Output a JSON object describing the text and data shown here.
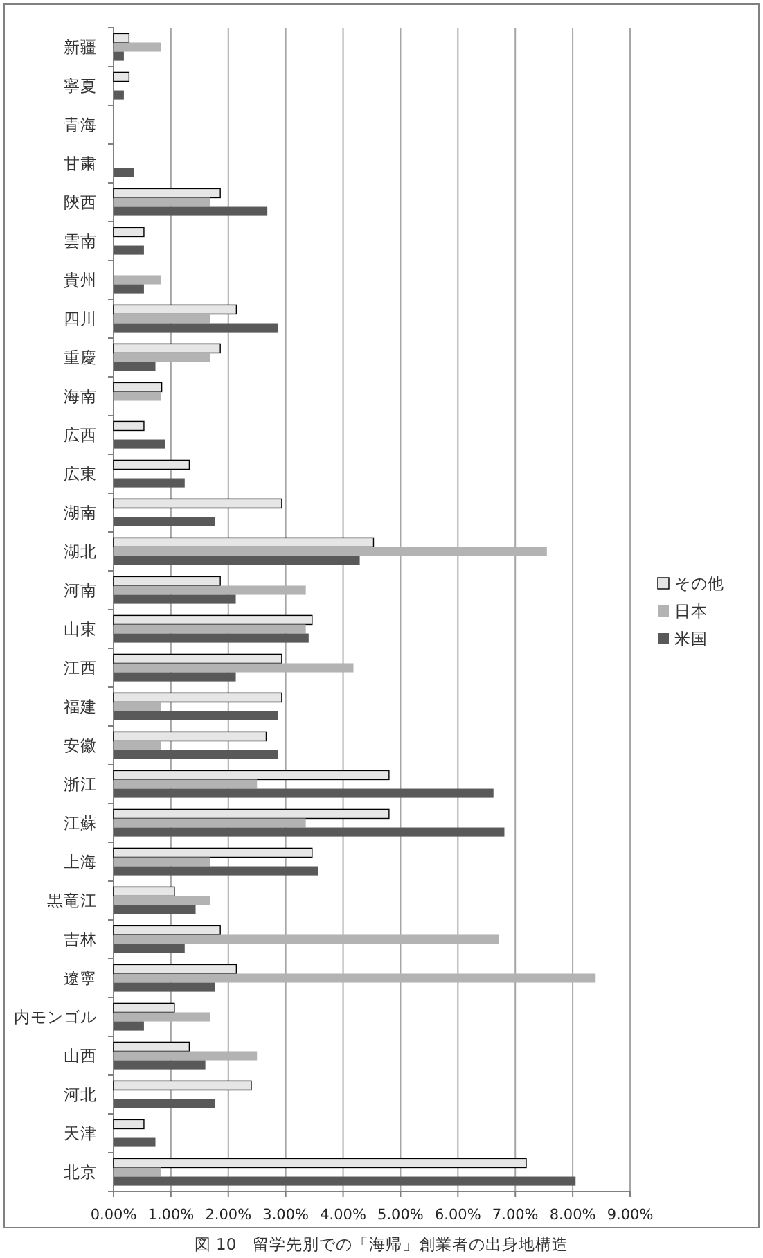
{
  "chart_data": {
    "type": "bar",
    "orientation": "horizontal",
    "categories": [
      "新疆",
      "寧夏",
      "青海",
      "甘粛",
      "陝西",
      "雲南",
      "貴州",
      "四川",
      "重慶",
      "海南",
      "広西",
      "広東",
      "湖南",
      "湖北",
      "河南",
      "山東",
      "江西",
      "福建",
      "安徽",
      "浙江",
      "江蘇",
      "上海",
      "黒竜江",
      "吉林",
      "遼寧",
      "内モンゴル",
      "山西",
      "河北",
      "天津",
      "北京"
    ],
    "series": [
      {
        "name": "その他",
        "color": "#e6e6e6",
        "values": [
          0.27,
          0.27,
          null,
          null,
          1.86,
          0.53,
          null,
          2.14,
          1.86,
          0.84,
          0.53,
          1.32,
          2.93,
          4.53,
          1.86,
          3.46,
          2.93,
          2.93,
          2.66,
          4.8,
          4.8,
          3.46,
          1.06,
          1.86,
          2.14,
          1.06,
          1.32,
          2.4,
          0.53,
          7.19
        ]
      },
      {
        "name": "日本",
        "color": "#b3b3b3",
        "values": [
          0.83,
          null,
          null,
          null,
          1.68,
          null,
          0.83,
          1.68,
          1.68,
          0.83,
          null,
          null,
          null,
          7.55,
          3.35,
          3.35,
          4.18,
          0.83,
          0.83,
          2.5,
          3.35,
          1.68,
          1.68,
          6.71,
          8.4,
          1.68,
          2.5,
          null,
          null,
          0.83
        ]
      },
      {
        "name": "米国",
        "color": "#595959",
        "values": [
          0.18,
          0.18,
          null,
          0.35,
          2.68,
          0.53,
          0.53,
          2.86,
          0.73,
          null,
          0.9,
          1.24,
          1.77,
          4.29,
          2.13,
          3.4,
          2.13,
          2.86,
          2.86,
          6.62,
          6.81,
          3.56,
          1.43,
          1.24,
          1.77,
          0.53,
          1.6,
          1.77,
          0.73,
          8.05
        ]
      }
    ],
    "xlim": [
      0,
      9
    ],
    "xticks": [
      {
        "value": 0,
        "label": "0.00%"
      },
      {
        "value": 1,
        "label": "1.00%"
      },
      {
        "value": 2,
        "label": "2.00%"
      },
      {
        "value": 3,
        "label": "3.00%"
      },
      {
        "value": 4,
        "label": "4.00%"
      },
      {
        "value": 5,
        "label": "5.00%"
      },
      {
        "value": 6,
        "label": "6.00%"
      },
      {
        "value": 7,
        "label": "7.00%"
      },
      {
        "value": 8,
        "label": "8.00%"
      },
      {
        "value": 9,
        "label": "9.00%"
      }
    ],
    "grid": "x",
    "legend": "right",
    "annotations": [
      "図 10　留学先別での「海帰」創業者の出身地構造"
    ]
  }
}
